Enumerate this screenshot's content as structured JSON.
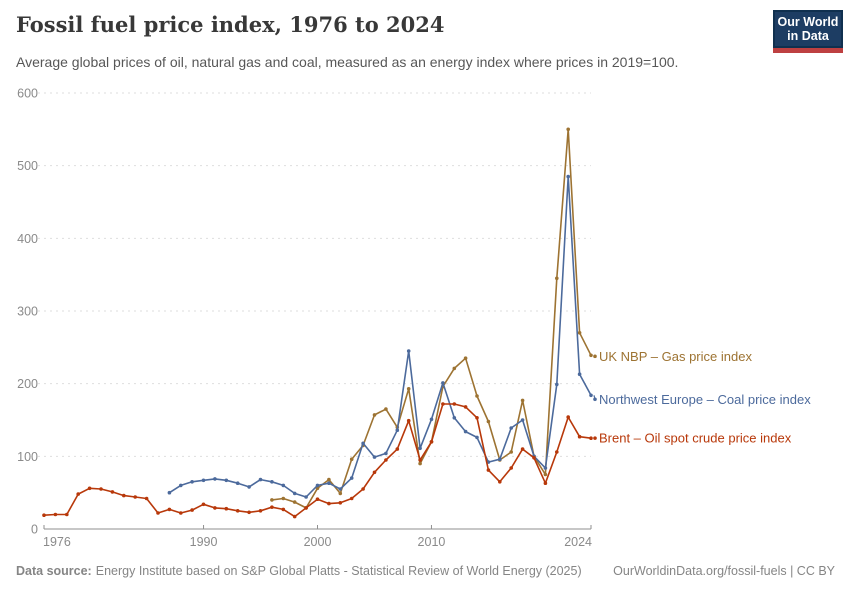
{
  "header": {
    "title": "Fossil fuel price index, 1976 to 2024",
    "subtitle": "Average global prices of oil, natural gas and coal, measured as an energy index where prices in 2019=100."
  },
  "logo": {
    "line1": "Our World",
    "line2": "in Data"
  },
  "footer": {
    "source_label": "Data source:",
    "source_text": "Energy Institute based on S&P Global Platts - Statistical Review of World Energy (2025)",
    "credit": "OurWorldinData.org/fossil-fuels | CC BY"
  },
  "chart_data": {
    "type": "line",
    "title": "Fossil fuel price index, 1976 to 2024",
    "xlabel": "",
    "ylabel": "",
    "x_range": [
      1976,
      2024
    ],
    "ylim": [
      0,
      600
    ],
    "y_ticks": [
      0,
      100,
      200,
      300,
      400,
      500,
      600
    ],
    "x_ticks": [
      1976,
      1990,
      2000,
      2010,
      2024
    ],
    "grid": "horizontal-dashed",
    "legend_position": "right-of-line-ends",
    "colors": {
      "axis": "#8f8f8f",
      "tick_text": "#8a8a8a",
      "grid": "#dedede"
    },
    "series": [
      {
        "id": "gas",
        "name": "UK NBP – Gas price index",
        "color": "#9D7332",
        "start_year": 1996,
        "values": [
          40,
          42,
          37,
          29,
          56,
          68,
          49,
          96,
          115,
          157,
          165,
          140,
          193,
          90,
          120,
          196,
          221,
          235,
          183,
          148,
          95,
          106,
          177,
          100,
          75,
          345,
          550,
          270,
          239
        ]
      },
      {
        "id": "coal",
        "name": "Northwest Europe – Coal price index",
        "color": "#4C6A9C",
        "start_year": 1987,
        "values": [
          50,
          60,
          65,
          67,
          69,
          67,
          63,
          58,
          68,
          65,
          60,
          49,
          44,
          60,
          63,
          55,
          70,
          118,
          99,
          104,
          136,
          245,
          111,
          151,
          201,
          153,
          134,
          126,
          92,
          96,
          139,
          150,
          100,
          84,
          199,
          485,
          213,
          184
        ]
      },
      {
        "id": "oil",
        "name": "Brent – Oil spot crude price index",
        "color": "#B8380A",
        "start_year": 1976,
        "values": [
          19,
          20,
          20,
          48,
          56,
          55,
          51,
          46,
          44,
          42,
          22,
          27,
          22,
          26,
          34,
          29,
          28,
          25,
          23,
          25,
          30,
          27,
          17,
          29,
          41,
          35,
          36,
          42,
          55,
          78,
          95,
          110,
          149,
          95,
          120,
          172,
          172,
          168,
          153,
          81,
          65,
          84,
          110,
          98,
          63,
          106,
          154,
          127,
          125
        ]
      }
    ]
  }
}
